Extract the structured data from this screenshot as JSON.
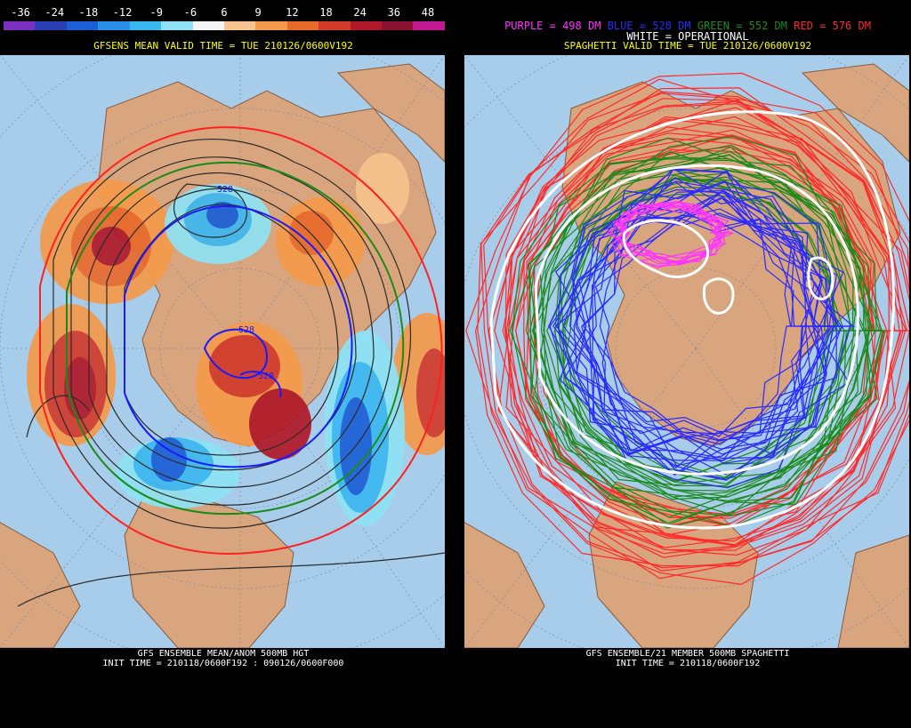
{
  "left": {
    "colorbar": {
      "labels": [
        "-36",
        "-24",
        "-18",
        "-12",
        "-9",
        "-6",
        "6",
        "9",
        "12",
        "18",
        "24",
        "36",
        "48"
      ],
      "colors": [
        "#7b2fbf",
        "#2b3fb5",
        "#1a5fd6",
        "#2a8fe8",
        "#3cb8f0",
        "#8fe2f5",
        "#f5f5f5",
        "#f7c48f",
        "#f59a4a",
        "#e86a2a",
        "#d23a2a",
        "#b01828",
        "#8a1030",
        "#c01890"
      ]
    },
    "title": "GFSENS MEAN VALID TIME = TUE 210126/0600V192",
    "caption_line1": "GFS ENSEMBLE MEAN/ANOM 500MB HGT",
    "caption_line2": "INIT TIME = 210118/0600F192 : 090126/0600F000",
    "contour_labels": [
      "528",
      "528",
      "528"
    ],
    "map_colors": {
      "ocean": "#a8cdea",
      "land": "#d9a57f",
      "coast": "#8a5a3a",
      "grid": "#7a8aa0"
    }
  },
  "right": {
    "legend": {
      "purple_text": "PURPLE = 498 DM",
      "blue_text": "BLUE = 528 DM",
      "green_text": "GREEN = 552 DM",
      "red_text": "RED = 576 DM",
      "white_text": "WHITE = OPERATIONAL",
      "purple_color": "#ff33ff",
      "blue_color": "#2a2aff",
      "green_color": "#1a8a1a",
      "red_color": "#ff2a2a"
    },
    "title": "SPAGHETTI VALID TIME = TUE 210126/0600V192",
    "caption_line1": "GFS ENSEMBLE/21 MEMBER 500MB SPAGHETTI",
    "caption_line2": "INIT TIME = 210118/0600F192"
  }
}
